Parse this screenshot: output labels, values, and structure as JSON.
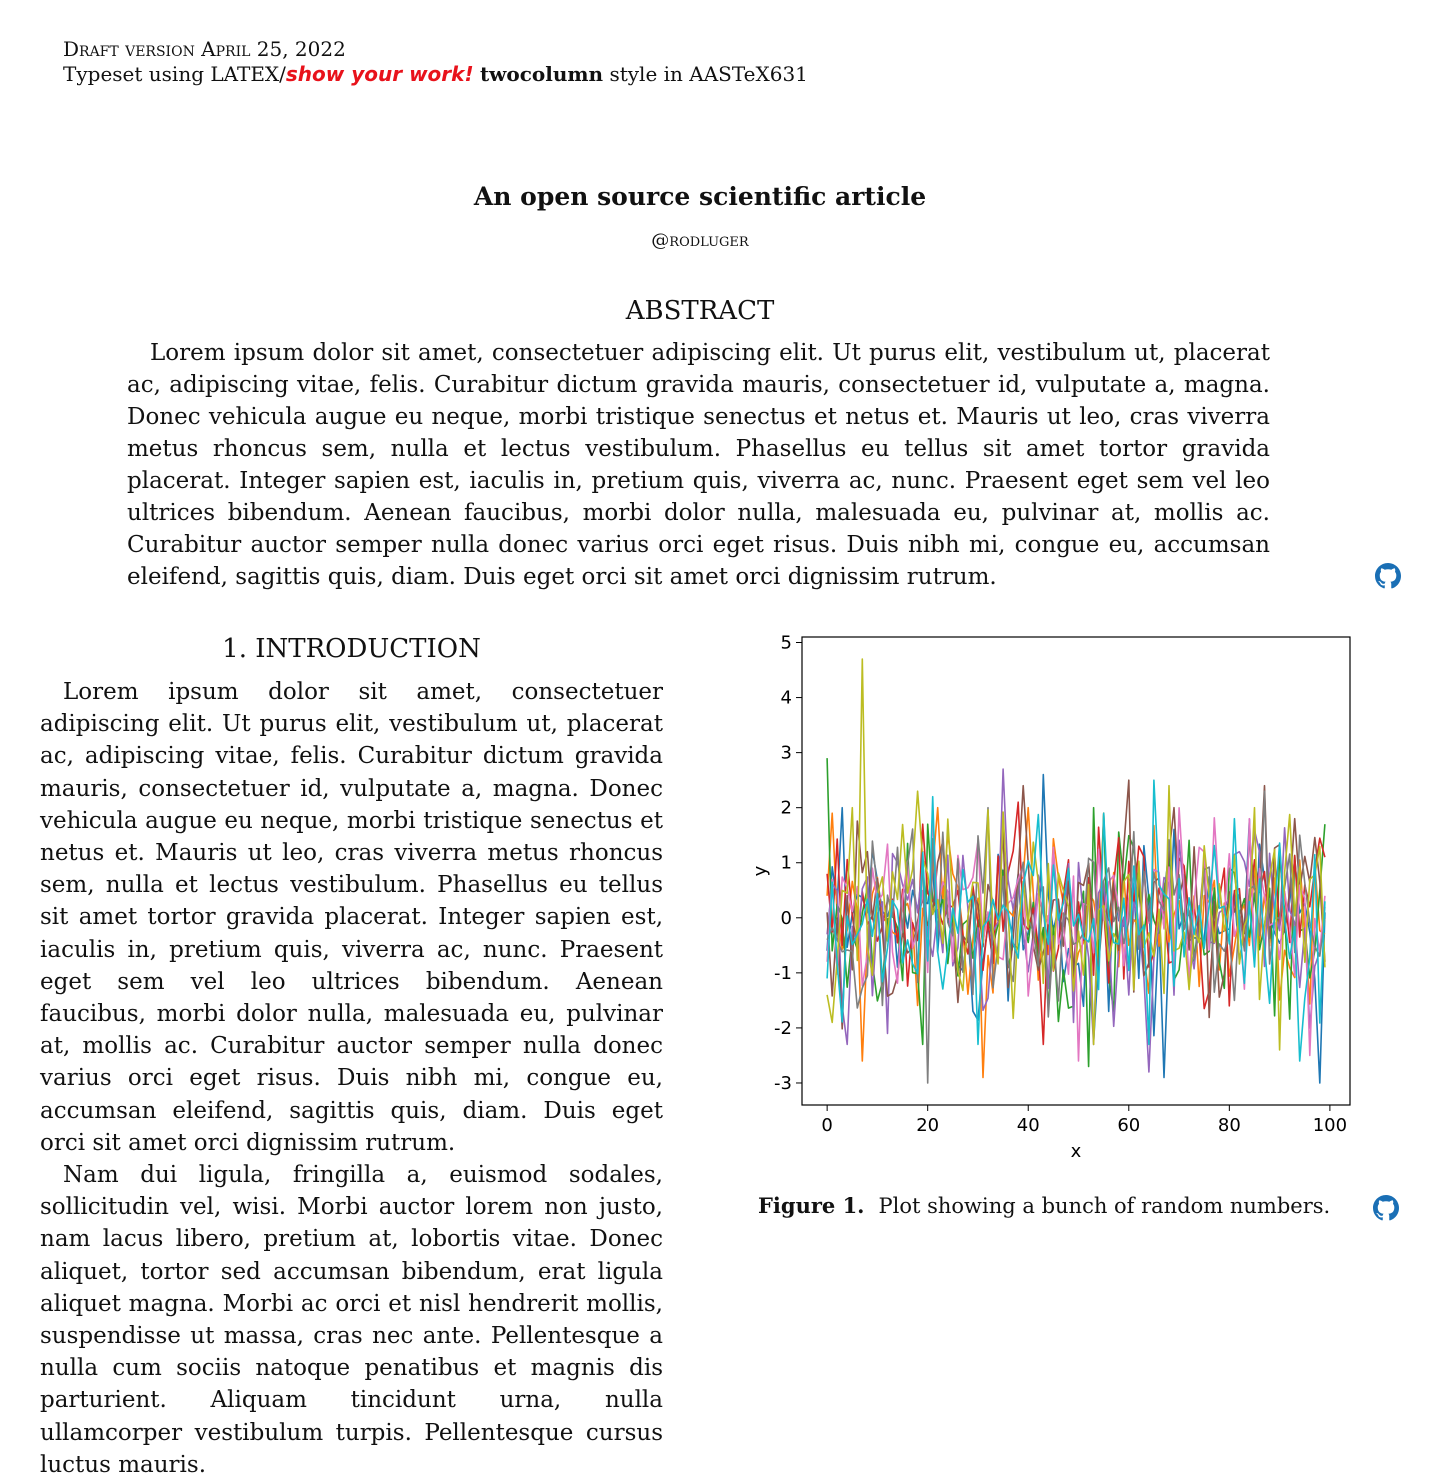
{
  "header": {
    "line1": "Draft version April 25, 2022",
    "typeset_pre": "Typeset using LATEX/",
    "show_your_work": "show your work!",
    "style_bold": "twocolumn",
    "style_post": "style in AASTeX631"
  },
  "title": "An open source scientific article",
  "author": "@rodluger",
  "abstract": {
    "heading": "ABSTRACT",
    "text": "Lorem ipsum dolor sit amet, consectetuer adipiscing elit. Ut purus elit, vestibulum ut, placerat ac, adipiscing vitae, felis. Curabitur dictum gravida mauris, consectetuer id, vulputate a, magna. Donec vehicula augue eu neque, morbi tristique senectus et netus et. Mauris ut leo, cras viverra metus rhoncus sem, nulla et lectus vestibulum. Phasellus eu tellus sit amet tortor gravida placerat. Integer sapien est, iaculis in, pretium quis, viverra ac, nunc. Praesent eget sem vel leo ultrices bibendum. Aenean faucibus, morbi dolor nulla, malesuada eu, pulvinar at, mollis ac. Curabitur auctor semper nulla donec varius orci eget risus. Duis nibh mi, congue eu, accumsan eleifend, sagittis quis, diam. Duis eget orci sit amet orci dignissim rutrum."
  },
  "section1": {
    "heading": "1.  INTRODUCTION",
    "paragraphs": [
      "Lorem ipsum dolor sit amet, consectetuer adipiscing elit. Ut purus elit, vestibulum ut, placerat ac, adipiscing vitae, felis. Curabitur dictum gravida mauris, consectetuer id, vulputate a, magna. Donec vehicula augue eu neque, morbi tristique senectus et netus et. Mauris ut leo, cras viverra metus rhoncus sem, nulla et lectus vestibulum. Phasellus eu tellus sit amet tortor gravida placerat. Integer sapien est, iaculis in, pretium quis, viverra ac, nunc. Praesent eget sem vel leo ultrices bibendum. Aenean faucibus, morbi dolor nulla, malesuada eu, pulvinar at, mollis ac. Curabitur auctor semper nulla donec varius orci eget risus. Duis nibh mi, congue eu, accumsan eleifend, sagittis quis, diam. Duis eget orci sit amet orci dignissim rutrum.",
      "Nam dui ligula, fringilla a, euismod sodales, sollicitudin vel, wisi. Morbi auctor lorem non justo, nam lacus libero, pretium at, lobortis vitae. Donec aliquet, tortor sed accumsan bibendum, erat ligula aliquet magna. Morbi ac orci et nisl hendrerit mollis, suspendisse ut massa, cras nec ante. Pellentesque a nulla cum sociis natoque penatibus et magnis dis parturient. Aliquam tincidunt urna, nulla ullamcorper vestibulum turpis. Pellentesque cursus luctus mauris."
    ]
  },
  "figure": {
    "label": "Figure 1.",
    "caption": "Plot showing a bunch of random numbers."
  },
  "icons": {
    "github": "github-icon",
    "github_color": "#1a6fb5"
  },
  "chart_data": {
    "type": "line",
    "xlabel": "x",
    "ylabel": "y",
    "xlim": [
      -5,
      104
    ],
    "ylim": [
      -3.4,
      5.1
    ],
    "xticks": [
      0,
      20,
      40,
      60,
      80,
      100
    ],
    "yticks": [
      -3,
      -2,
      -1,
      0,
      1,
      2,
      3,
      4,
      5
    ],
    "n_points": 100,
    "grid": false,
    "series_colors": [
      "#1f77b4",
      "#ff7f0e",
      "#2ca02c",
      "#d62728",
      "#9467bd",
      "#8c564b",
      "#e377c2",
      "#7f7f7f",
      "#bcbd22",
      "#17becf"
    ],
    "approx_series": [
      {
        "points": [
          [
            0,
            -0.6
          ],
          [
            17,
            0.5
          ],
          [
            43,
            2.6
          ],
          [
            56,
            -1.7
          ],
          [
            67,
            -2.9
          ],
          [
            92,
            0.3
          ],
          [
            98,
            -3.0
          ],
          [
            99,
            0.1
          ]
        ]
      },
      {
        "points": [
          [
            0,
            0.4
          ],
          [
            1,
            1.9
          ],
          [
            7,
            -2.6
          ],
          [
            21,
            0.9
          ],
          [
            31,
            -2.9
          ],
          [
            34,
            1.0
          ],
          [
            60,
            -0.5
          ],
          [
            99,
            -0.3
          ]
        ]
      },
      {
        "points": [
          [
            0,
            2.9
          ],
          [
            1,
            -0.6
          ],
          [
            20,
            1.7
          ],
          [
            36,
            -0.9
          ],
          [
            52,
            -2.7
          ],
          [
            80,
            0.9
          ],
          [
            97,
            -0.6
          ],
          [
            99,
            1.7
          ]
        ]
      },
      {
        "points": [
          [
            0,
            0.8
          ],
          [
            3,
            -0.5
          ],
          [
            19,
            1.7
          ],
          [
            38,
            2.1
          ],
          [
            62,
            1.3
          ],
          [
            80,
            -1.6
          ],
          [
            95,
            0.6
          ],
          [
            99,
            1.1
          ]
        ]
      },
      {
        "points": [
          [
            0,
            -0.3
          ],
          [
            12,
            -2.1
          ],
          [
            35,
            2.7
          ],
          [
            49,
            -1.9
          ],
          [
            64,
            -2.8
          ],
          [
            82,
            1.2
          ],
          [
            96,
            -2.0
          ],
          [
            99,
            0.2
          ]
        ]
      },
      {
        "points": [
          [
            0,
            0.1
          ],
          [
            8,
            1.2
          ],
          [
            24,
            0.0
          ],
          [
            39,
            2.4
          ],
          [
            60,
            2.5
          ],
          [
            87,
            2.4
          ],
          [
            93,
            1.8
          ],
          [
            99,
            -0.8
          ]
        ]
      },
      {
        "points": [
          [
            0,
            -0.8
          ],
          [
            9,
            0.9
          ],
          [
            30,
            1.4
          ],
          [
            50,
            -2.6
          ],
          [
            63,
            0.8
          ],
          [
            84,
            1.8
          ],
          [
            96,
            -2.5
          ],
          [
            99,
            0.4
          ]
        ]
      },
      {
        "points": [
          [
            0,
            -0.4
          ],
          [
            10,
            0.5
          ],
          [
            20,
            -3.0
          ],
          [
            44,
            -1.8
          ],
          [
            66,
            0.3
          ],
          [
            87,
            2.3
          ],
          [
            94,
            1.5
          ],
          [
            99,
            0.0
          ]
        ]
      },
      {
        "points": [
          [
            0,
            -1.4
          ],
          [
            1,
            -1.9
          ],
          [
            7,
            4.7
          ],
          [
            18,
            2.3
          ],
          [
            68,
            2.4
          ],
          [
            90,
            -2.4
          ],
          [
            96,
            0.7
          ],
          [
            99,
            -0.9
          ]
        ]
      },
      {
        "points": [
          [
            0,
            -1.1
          ],
          [
            6,
            -0.3
          ],
          [
            21,
            2.2
          ],
          [
            55,
            1.9
          ],
          [
            65,
            2.5
          ],
          [
            81,
            1.8
          ],
          [
            94,
            -2.6
          ],
          [
            99,
            0.3
          ]
        ]
      }
    ]
  }
}
